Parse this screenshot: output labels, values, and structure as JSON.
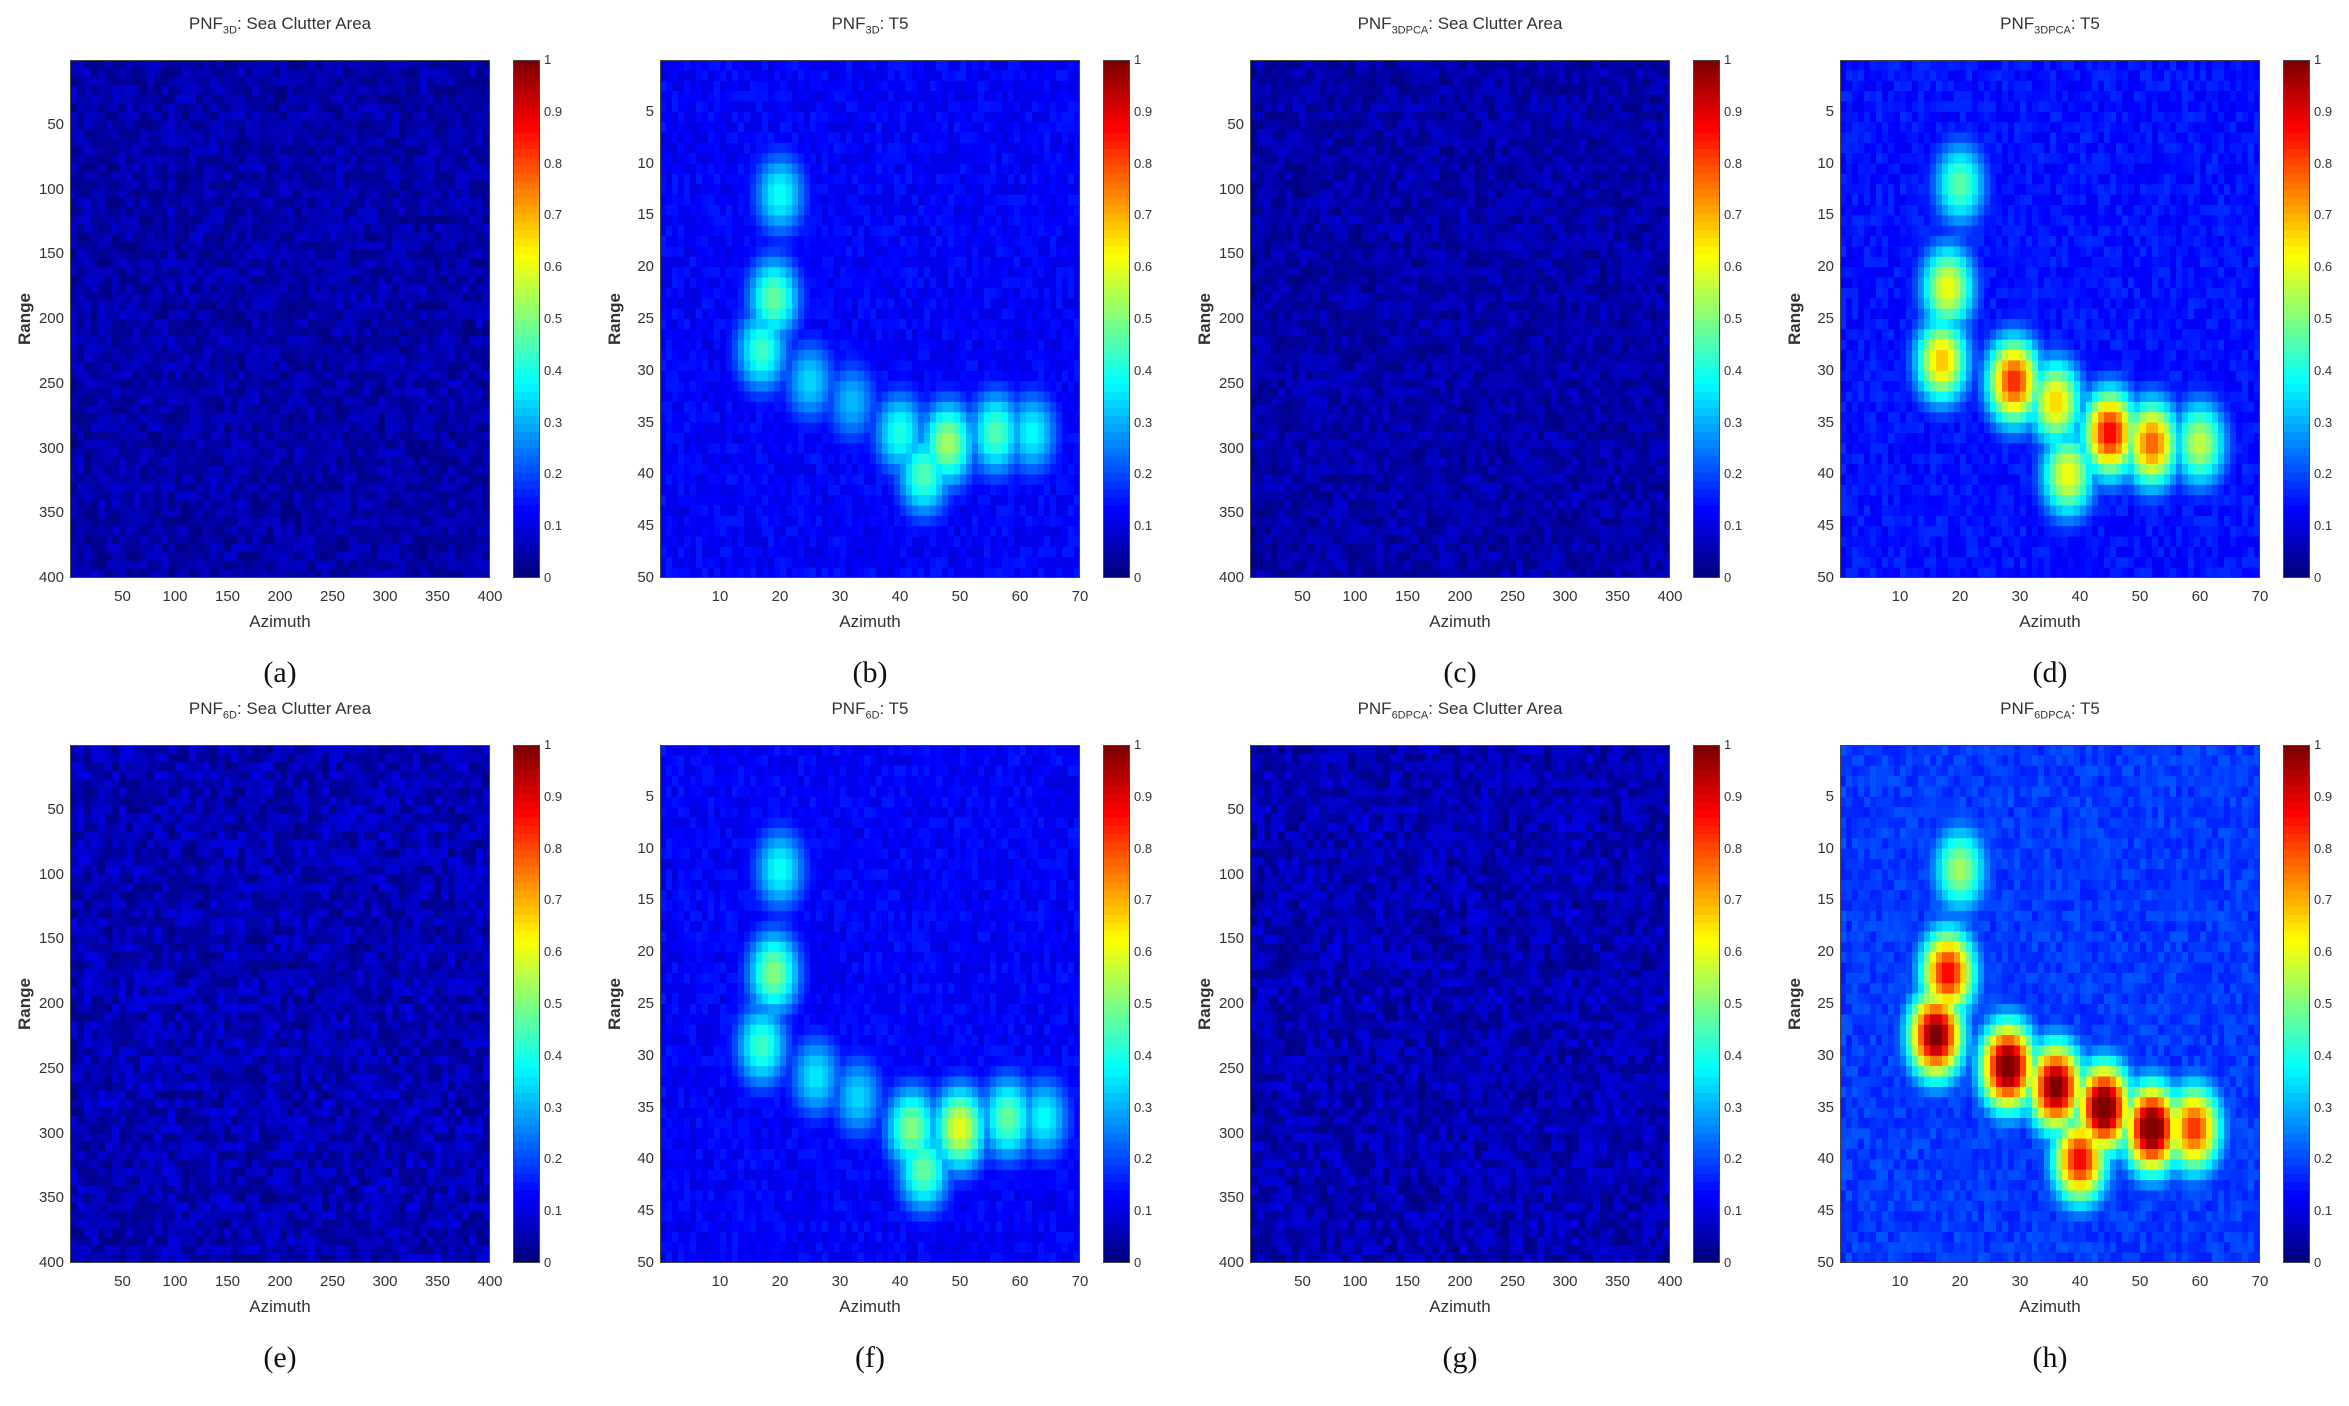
{
  "figure": {
    "panels": [
      {
        "id": "a",
        "caption": "(a)",
        "title_main": "PNF",
        "title_sub": "3D",
        "title_rest": ": Sea Clutter Area",
        "x_ticks": [
          "50",
          "100",
          "150",
          "200",
          "250",
          "300",
          "350",
          "400"
        ],
        "y_ticks": [
          "50",
          "100",
          "150",
          "200",
          "250",
          "300",
          "350",
          "400"
        ],
        "xlabel": "Azimuth",
        "ylabel": "Range"
      },
      {
        "id": "b",
        "caption": "(b)",
        "title_main": "PNF",
        "title_sub": "3D",
        "title_rest": ": T5",
        "x_ticks": [
          "10",
          "20",
          "30",
          "40",
          "50",
          "60",
          "70"
        ],
        "y_ticks": [
          "5",
          "10",
          "15",
          "20",
          "25",
          "30",
          "35",
          "40",
          "45",
          "50"
        ],
        "xlabel": "Azimuth",
        "ylabel": "Range"
      },
      {
        "id": "c",
        "caption": "(c)",
        "title_main": "PNF",
        "title_sub": "3DPCA",
        "title_rest": ": Sea Clutter Area",
        "x_ticks": [
          "50",
          "100",
          "150",
          "200",
          "250",
          "300",
          "350",
          "400"
        ],
        "y_ticks": [
          "50",
          "100",
          "150",
          "200",
          "250",
          "300",
          "350",
          "400"
        ],
        "xlabel": "Azimuth",
        "ylabel": "Range"
      },
      {
        "id": "d",
        "caption": "(d)",
        "title_main": "PNF",
        "title_sub": "3DPCA",
        "title_rest": ": T5",
        "x_ticks": [
          "10",
          "20",
          "30",
          "40",
          "50",
          "60",
          "70"
        ],
        "y_ticks": [
          "5",
          "10",
          "15",
          "20",
          "25",
          "30",
          "35",
          "40",
          "45",
          "50"
        ],
        "xlabel": "Azimuth",
        "ylabel": "Range"
      },
      {
        "id": "e",
        "caption": "(e)",
        "title_main": "PNF",
        "title_sub": "6D",
        "title_rest": ": Sea Clutter Area",
        "x_ticks": [
          "50",
          "100",
          "150",
          "200",
          "250",
          "300",
          "350",
          "400"
        ],
        "y_ticks": [
          "50",
          "100",
          "150",
          "200",
          "250",
          "300",
          "350",
          "400"
        ],
        "xlabel": "Azimuth",
        "ylabel": "Range"
      },
      {
        "id": "f",
        "caption": "(f)",
        "title_main": "PNF",
        "title_sub": "6D",
        "title_rest": ": T5",
        "x_ticks": [
          "10",
          "20",
          "30",
          "40",
          "50",
          "60",
          "70"
        ],
        "y_ticks": [
          "5",
          "10",
          "15",
          "20",
          "25",
          "30",
          "35",
          "40",
          "45",
          "50"
        ],
        "xlabel": "Azimuth",
        "ylabel": "Range"
      },
      {
        "id": "g",
        "caption": "(g)",
        "title_main": "PNF",
        "title_sub": "6DPCA",
        "title_rest": ": Sea Clutter Area",
        "x_ticks": [
          "50",
          "100",
          "150",
          "200",
          "250",
          "300",
          "350",
          "400"
        ],
        "y_ticks": [
          "50",
          "100",
          "150",
          "200",
          "250",
          "300",
          "350",
          "400"
        ],
        "xlabel": "Azimuth",
        "ylabel": "Range"
      },
      {
        "id": "h",
        "caption": "(h)",
        "title_main": "PNF",
        "title_sub": "6DPCA",
        "title_rest": ": T5",
        "x_ticks": [
          "10",
          "20",
          "30",
          "40",
          "50",
          "60",
          "70"
        ],
        "y_ticks": [
          "5",
          "10",
          "15",
          "20",
          "25",
          "30",
          "35",
          "40",
          "45",
          "50"
        ],
        "xlabel": "Azimuth",
        "ylabel": "Range"
      }
    ],
    "colorbar_ticks": [
      "1",
      "0.9",
      "0.8",
      "0.7",
      "0.6",
      "0.5",
      "0.4",
      "0.3",
      "0.2",
      "0.1",
      "0"
    ],
    "colormap": "jet"
  },
  "chart_data": [
    {
      "type": "heatmap",
      "panel": "a",
      "xlabel": "Azimuth",
      "ylabel": "Range",
      "xlim": [
        0,
        400
      ],
      "ylim": [
        400,
        0
      ],
      "clim": [
        0,
        1
      ],
      "summary_value_range": [
        0.0,
        0.08
      ],
      "pattern": "uniform low noise"
    },
    {
      "type": "heatmap",
      "panel": "b",
      "xlabel": "Azimuth",
      "ylabel": "Range",
      "xlim": [
        0,
        70
      ],
      "ylim": [
        50,
        0
      ],
      "clim": [
        0,
        1
      ],
      "blobs": [
        {
          "x": 20,
          "y": 13,
          "value": 0.33
        },
        {
          "x": 19,
          "y": 23,
          "value": 0.42
        },
        {
          "x": 17,
          "y": 28,
          "value": 0.38
        },
        {
          "x": 25,
          "y": 31,
          "value": 0.28
        },
        {
          "x": 32,
          "y": 33,
          "value": 0.25
        },
        {
          "x": 40,
          "y": 36,
          "value": 0.35
        },
        {
          "x": 48,
          "y": 37,
          "value": 0.48
        },
        {
          "x": 56,
          "y": 36,
          "value": 0.4
        },
        {
          "x": 62,
          "y": 36,
          "value": 0.32
        },
        {
          "x": 44,
          "y": 40,
          "value": 0.4
        }
      ],
      "background": 0.12
    },
    {
      "type": "heatmap",
      "panel": "c",
      "xlabel": "Azimuth",
      "ylabel": "Range",
      "xlim": [
        0,
        400
      ],
      "ylim": [
        400,
        0
      ],
      "clim": [
        0,
        1
      ],
      "summary_value_range": [
        0.0,
        0.08
      ],
      "pattern": "uniform low noise"
    },
    {
      "type": "heatmap",
      "panel": "d",
      "xlabel": "Azimuth",
      "ylabel": "Range",
      "xlim": [
        0,
        70
      ],
      "ylim": [
        50,
        0
      ],
      "clim": [
        0,
        1
      ],
      "blobs": [
        {
          "x": 20,
          "y": 12,
          "value": 0.4
        },
        {
          "x": 18,
          "y": 22,
          "value": 0.55
        },
        {
          "x": 17,
          "y": 29,
          "value": 0.62
        },
        {
          "x": 29,
          "y": 31,
          "value": 0.78
        },
        {
          "x": 36,
          "y": 33,
          "value": 0.6
        },
        {
          "x": 45,
          "y": 36,
          "value": 0.82
        },
        {
          "x": 52,
          "y": 37,
          "value": 0.72
        },
        {
          "x": 60,
          "y": 37,
          "value": 0.5
        },
        {
          "x": 38,
          "y": 40,
          "value": 0.55
        }
      ],
      "background": 0.14
    },
    {
      "type": "heatmap",
      "panel": "e",
      "xlabel": "Azimuth",
      "ylabel": "Range",
      "xlim": [
        0,
        400
      ],
      "ylim": [
        400,
        0
      ],
      "clim": [
        0,
        1
      ],
      "summary_value_range": [
        0.0,
        0.1
      ],
      "pattern": "uniform low noise"
    },
    {
      "type": "heatmap",
      "panel": "f",
      "xlabel": "Azimuth",
      "ylabel": "Range",
      "xlim": [
        0,
        70
      ],
      "ylim": [
        50,
        0
      ],
      "clim": [
        0,
        1
      ],
      "blobs": [
        {
          "x": 20,
          "y": 12,
          "value": 0.33
        },
        {
          "x": 19,
          "y": 22,
          "value": 0.45
        },
        {
          "x": 17,
          "y": 29,
          "value": 0.38
        },
        {
          "x": 26,
          "y": 32,
          "value": 0.3
        },
        {
          "x": 33,
          "y": 34,
          "value": 0.28
        },
        {
          "x": 42,
          "y": 37,
          "value": 0.45
        },
        {
          "x": 50,
          "y": 37,
          "value": 0.55
        },
        {
          "x": 58,
          "y": 36,
          "value": 0.42
        },
        {
          "x": 64,
          "y": 36,
          "value": 0.32
        },
        {
          "x": 44,
          "y": 41,
          "value": 0.42
        }
      ],
      "background": 0.12
    },
    {
      "type": "heatmap",
      "panel": "g",
      "xlabel": "Azimuth",
      "ylabel": "Range",
      "xlim": [
        0,
        400
      ],
      "ylim": [
        400,
        0
      ],
      "clim": [
        0,
        1
      ],
      "summary_value_range": [
        0.0,
        0.1
      ],
      "pattern": "uniform low noise"
    },
    {
      "type": "heatmap",
      "panel": "h",
      "xlabel": "Azimuth",
      "ylabel": "Range",
      "xlim": [
        0,
        70
      ],
      "ylim": [
        50,
        0
      ],
      "clim": [
        0,
        1
      ],
      "blobs": [
        {
          "x": 20,
          "y": 12,
          "value": 0.45
        },
        {
          "x": 18,
          "y": 22,
          "value": 0.8
        },
        {
          "x": 16,
          "y": 28,
          "value": 0.95
        },
        {
          "x": 28,
          "y": 31,
          "value": 0.98
        },
        {
          "x": 36,
          "y": 33,
          "value": 0.95
        },
        {
          "x": 44,
          "y": 35,
          "value": 1.0
        },
        {
          "x": 52,
          "y": 37,
          "value": 1.0
        },
        {
          "x": 59,
          "y": 37,
          "value": 0.75
        },
        {
          "x": 40,
          "y": 40,
          "value": 0.8
        }
      ],
      "background": 0.18
    }
  ]
}
